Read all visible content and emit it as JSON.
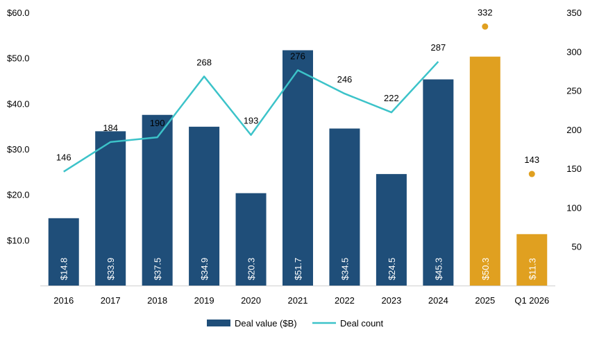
{
  "chart_data": {
    "type": "bar",
    "categories": [
      "2016",
      "2017",
      "2018",
      "2019",
      "2020",
      "2021",
      "2022",
      "2023",
      "2024",
      "2025",
      "Q1 2026"
    ],
    "series": [
      {
        "name": "Deal value ($B)",
        "type": "bar",
        "axis": "left",
        "values": [
          14.8,
          33.9,
          37.5,
          34.9,
          20.3,
          51.7,
          34.5,
          24.5,
          45.3,
          50.3,
          11.3
        ],
        "value_labels": [
          "$14.8",
          "$33.9",
          "$37.5",
          "$34.9",
          "$20.3",
          "$51.7",
          "$34.5",
          "$24.5",
          "$45.3",
          "$50.3",
          "$11.3"
        ],
        "colors": [
          "#1f4e79",
          "#1f4e79",
          "#1f4e79",
          "#1f4e79",
          "#1f4e79",
          "#1f4e79",
          "#1f4e79",
          "#1f4e79",
          "#1f4e79",
          "#e0a020",
          "#e0a020"
        ]
      },
      {
        "name": "Deal count",
        "type": "line",
        "axis": "right",
        "values": [
          146,
          184,
          190,
          268,
          193,
          276,
          246,
          222,
          287,
          332,
          143
        ],
        "line_points": 9,
        "marker_color": "#e0a020"
      }
    ],
    "left_axis": {
      "ylim": [
        0,
        60
      ],
      "ticks": [
        10,
        20,
        30,
        40,
        50,
        60
      ],
      "tick_labels": [
        "$10.0",
        "$20.0",
        "$30.0",
        "$40.0",
        "$50.0",
        "$60.0"
      ]
    },
    "right_axis": {
      "ylim": [
        0,
        350
      ],
      "ticks": [
        50,
        100,
        150,
        200,
        250,
        300,
        350
      ],
      "tick_labels": [
        "50",
        "100",
        "150",
        "200",
        "250",
        "300",
        "350"
      ]
    },
    "grid": false,
    "legend": "bottom-center",
    "colors": {
      "bar_primary": "#1f4e79",
      "bar_highlight": "#e0a020",
      "line": "#3cc3c9"
    }
  }
}
